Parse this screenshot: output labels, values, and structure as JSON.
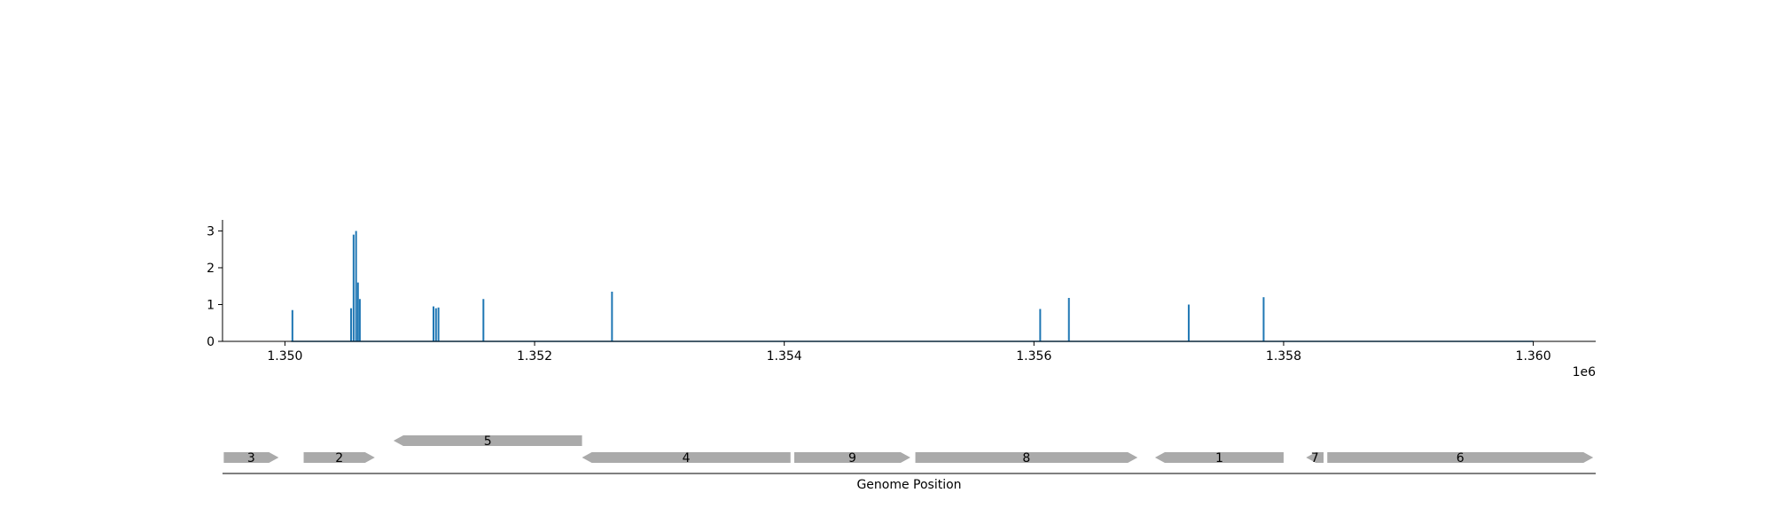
{
  "chart_data": [
    {
      "type": "line",
      "title": "",
      "xlabel": "",
      "ylabel": "",
      "x_offset_label": "1e6",
      "xlim": [
        1349500,
        1360500
      ],
      "ylim": [
        0,
        3.3
      ],
      "x_ticks": [
        1350000,
        1352000,
        1354000,
        1356000,
        1358000,
        1360000
      ],
      "x_tick_labels": [
        "1.350",
        "1.352",
        "1.354",
        "1.356",
        "1.358",
        "1.360"
      ],
      "y_ticks": [
        0,
        1,
        2,
        3
      ],
      "y_tick_labels": [
        "0",
        "1",
        "2",
        "3"
      ],
      "series_color": "#1f77b4",
      "data_extent": [
        1350050,
        1360000
      ],
      "peaks": [
        {
          "x": 1350060,
          "y": 0.85
        },
        {
          "x": 1350530,
          "y": 0.9
        },
        {
          "x": 1350550,
          "y": 2.9
        },
        {
          "x": 1350570,
          "y": 3.0
        },
        {
          "x": 1350585,
          "y": 1.6
        },
        {
          "x": 1350600,
          "y": 1.15
        },
        {
          "x": 1351190,
          "y": 0.95
        },
        {
          "x": 1351210,
          "y": 0.9
        },
        {
          "x": 1351230,
          "y": 0.92
        },
        {
          "x": 1351590,
          "y": 1.15
        },
        {
          "x": 1352620,
          "y": 1.35
        },
        {
          "x": 1356050,
          "y": 0.88
        },
        {
          "x": 1356280,
          "y": 1.18
        },
        {
          "x": 1357240,
          "y": 1.0
        },
        {
          "x": 1357840,
          "y": 1.2
        }
      ]
    },
    {
      "type": "diagram",
      "xlabel": "Genome Position",
      "xlim": [
        1349500,
        1360500
      ],
      "gene_color": "#aaaaaa",
      "genes": [
        {
          "label": "3",
          "start": 1349510,
          "end": 1349950,
          "strand": "+",
          "level": 0
        },
        {
          "label": "2",
          "start": 1350150,
          "end": 1350720,
          "strand": "+",
          "level": 0
        },
        {
          "label": "5",
          "start": 1350870,
          "end": 1352380,
          "strand": "-",
          "level": 1
        },
        {
          "label": "4",
          "start": 1352380,
          "end": 1354050,
          "strand": "-",
          "level": 0
        },
        {
          "label": "9",
          "start": 1354080,
          "end": 1355010,
          "strand": "+",
          "level": 0
        },
        {
          "label": "8",
          "start": 1355050,
          "end": 1356830,
          "strand": "+",
          "level": 0
        },
        {
          "label": "1",
          "start": 1356970,
          "end": 1358000,
          "strand": "-",
          "level": 0
        },
        {
          "label": "7",
          "start": 1358180,
          "end": 1358320,
          "strand": "-",
          "level": 0
        },
        {
          "label": "6",
          "start": 1358350,
          "end": 1360480,
          "strand": "+",
          "level": 0
        }
      ]
    }
  ]
}
